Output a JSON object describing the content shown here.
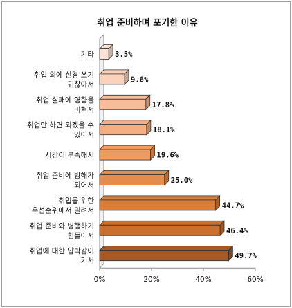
{
  "chart_data": {
    "type": "bar",
    "orientation": "horizontal",
    "title": "취업 준비하며 포기한 이유",
    "categories": [
      [
        "기타"
      ],
      [
        "취업 외에 신경 쓰기",
        "귀찮아서"
      ],
      [
        "취업 실패에 영향을",
        "미쳐서"
      ],
      [
        "취업만 하면 되겠을 수",
        "있어서"
      ],
      [
        "시간이 부족해서"
      ],
      [
        "취업 준비에 방해가",
        "되어서"
      ],
      [
        "취업을 위한",
        "우선순위에서 밀려서"
      ],
      [
        "취업 준비와 병행하기",
        "힘들어서"
      ],
      [
        "취업에 대한 압박감이",
        "커서"
      ]
    ],
    "values": [
      3.5,
      9.6,
      17.8,
      18.1,
      19.6,
      25.0,
      44.7,
      46.4,
      49.7
    ],
    "value_labels": [
      "3.5%",
      "9.6%",
      "17.8%",
      "18.1%",
      "19.6%",
      "25.0%",
      "44.7%",
      "46.4%",
      "49.7%"
    ],
    "bar_colors": [
      "#fbe3d6",
      "#fbd2bc",
      "#f7bd9a",
      "#f5ae82",
      "#ef9a5e",
      "#e38c4c",
      "#d77e3a",
      "#c9702e",
      "#a95a24"
    ],
    "xlim": [
      0,
      60
    ],
    "xticks": [
      0,
      20,
      40,
      60
    ],
    "xtick_labels": [
      "0%",
      "20%",
      "40%",
      "60%"
    ],
    "grid": false
  }
}
